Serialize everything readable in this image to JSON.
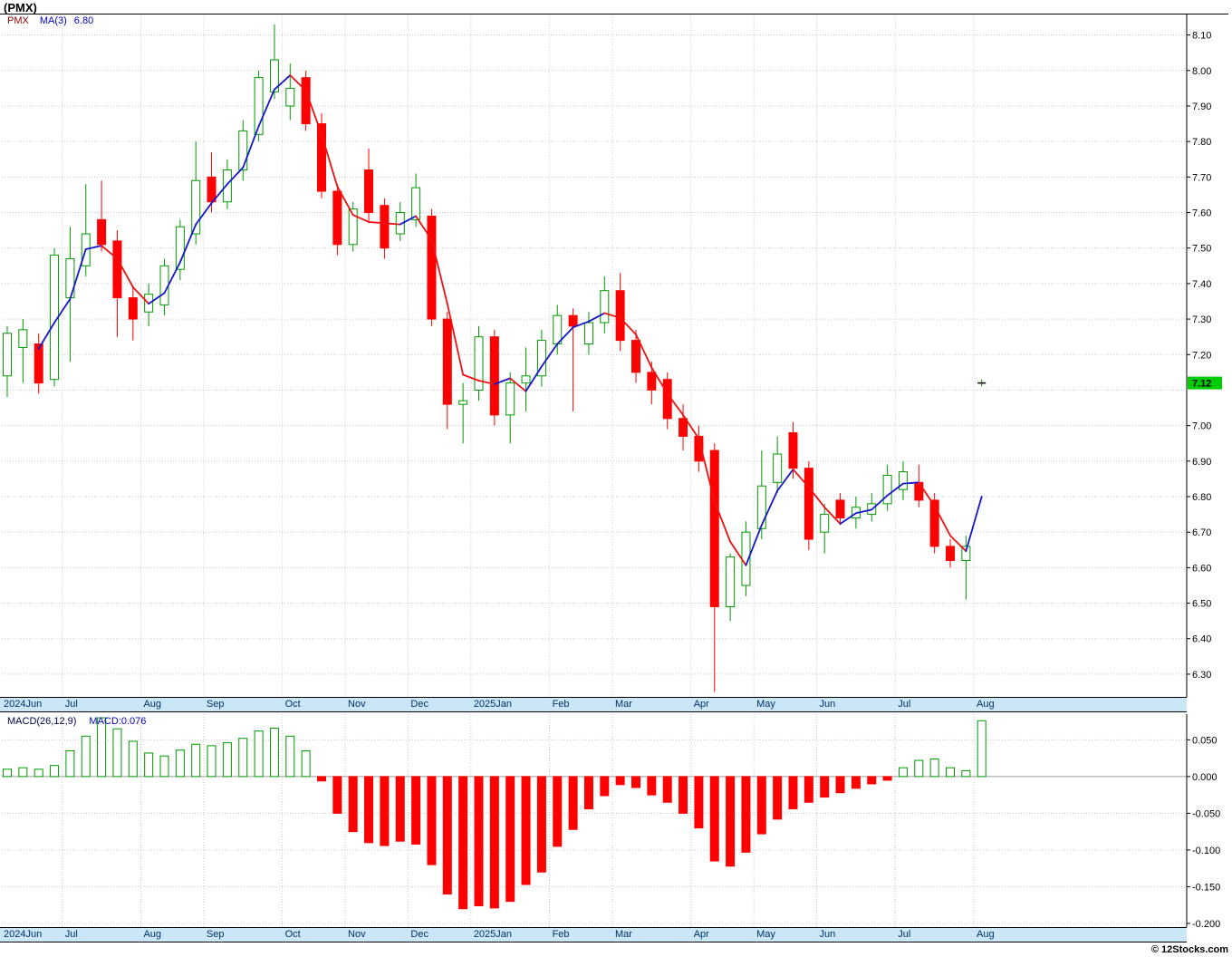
{
  "header": {
    "title": "(PMX)"
  },
  "legend": {
    "symbol": "PMX",
    "ma_label": "MA(3)",
    "ma_value": "6.80"
  },
  "macd_panel": {
    "label": "MACD(26,12,9)",
    "value_label": "MACD:0.076"
  },
  "footer": {
    "credit": "© 12Stocks.com"
  },
  "price_badge": "7.12",
  "colors": {
    "up_candle": "#009900",
    "down_candle": "#ff0000",
    "ma_rising": "#1515cc",
    "ma_falling": "#ee1111",
    "grid": "#c9c9c9",
    "axis": "#000000",
    "date_band_bg": "#cbe6f7",
    "date_band_text": "#003366",
    "price_badge_bg": "#00cc00",
    "legend_symbol": "#8b0000",
    "legend_ma": "#0000cd"
  },
  "chart_data": [
    {
      "type": "candlestick",
      "symbol": "PMX",
      "interval": "weekly",
      "ma_period": 3,
      "ma_last_value": 6.8,
      "last_price": 7.12,
      "ylim": [
        6.236,
        8.159
      ],
      "y_ticks": [
        8.1,
        8.0,
        7.9,
        7.8,
        7.7,
        7.6,
        7.5,
        7.4,
        7.3,
        7.2,
        7.0,
        6.9,
        6.8,
        6.7,
        6.6,
        6.5,
        6.4,
        6.3
      ],
      "y_grid": [
        8.1,
        8.0,
        7.9,
        7.8,
        7.7,
        7.6,
        7.5,
        7.4,
        7.3,
        7.2,
        7.1,
        7.0,
        6.9,
        6.8,
        6.7,
        6.6,
        6.5,
        6.4,
        6.3
      ],
      "x_axis_months": [
        {
          "label": "2024Jun",
          "bar": 0
        },
        {
          "label": "Jul",
          "bar": 4
        },
        {
          "label": "Aug",
          "bar": 9
        },
        {
          "label": "Sep",
          "bar": 13
        },
        {
          "label": "Oct",
          "bar": 18
        },
        {
          "label": "Nov",
          "bar": 22
        },
        {
          "label": "Dec",
          "bar": 26
        },
        {
          "label": "2025Jan",
          "bar": 30
        },
        {
          "label": "Feb",
          "bar": 35
        },
        {
          "label": "Mar",
          "bar": 39
        },
        {
          "label": "Apr",
          "bar": 44
        },
        {
          "label": "May",
          "bar": 48
        },
        {
          "label": "Jun",
          "bar": 52
        },
        {
          "label": "Jul",
          "bar": 57
        },
        {
          "label": "Aug",
          "bar": 62
        }
      ],
      "bars": [
        [
          7.14,
          7.28,
          7.08,
          7.26
        ],
        [
          7.22,
          7.3,
          7.12,
          7.27
        ],
        [
          7.23,
          7.26,
          7.09,
          7.12
        ],
        [
          7.13,
          7.5,
          7.11,
          7.48
        ],
        [
          7.36,
          7.56,
          7.18,
          7.47
        ],
        [
          7.45,
          7.68,
          7.42,
          7.54
        ],
        [
          7.58,
          7.69,
          7.49,
          7.51
        ],
        [
          7.52,
          7.55,
          7.25,
          7.36
        ],
        [
          7.36,
          7.39,
          7.24,
          7.3
        ],
        [
          7.32,
          7.4,
          7.28,
          7.37
        ],
        [
          7.34,
          7.47,
          7.31,
          7.45
        ],
        [
          7.44,
          7.58,
          7.41,
          7.56
        ],
        [
          7.54,
          7.8,
          7.51,
          7.69
        ],
        [
          7.7,
          7.77,
          7.6,
          7.63
        ],
        [
          7.63,
          7.75,
          7.61,
          7.72
        ],
        [
          7.72,
          7.86,
          7.69,
          7.83
        ],
        [
          7.82,
          8.0,
          7.8,
          7.98
        ],
        [
          7.94,
          8.13,
          7.92,
          8.03
        ],
        [
          7.9,
          8.02,
          7.86,
          7.95
        ],
        [
          7.98,
          8.0,
          7.83,
          7.85
        ],
        [
          7.85,
          7.88,
          7.64,
          7.66
        ],
        [
          7.66,
          7.68,
          7.48,
          7.51
        ],
        [
          7.51,
          7.63,
          7.49,
          7.61
        ],
        [
          7.72,
          7.78,
          7.57,
          7.6
        ],
        [
          7.62,
          7.64,
          7.47,
          7.5
        ],
        [
          7.54,
          7.63,
          7.52,
          7.6
        ],
        [
          7.58,
          7.71,
          7.56,
          7.67
        ],
        [
          7.59,
          7.61,
          7.28,
          7.3
        ],
        [
          7.3,
          7.32,
          6.99,
          7.06
        ],
        [
          7.06,
          7.12,
          6.95,
          7.07
        ],
        [
          7.1,
          7.28,
          7.07,
          7.25
        ],
        [
          7.25,
          7.27,
          7.0,
          7.03
        ],
        [
          7.03,
          7.15,
          6.95,
          7.12
        ],
        [
          7.12,
          7.22,
          7.04,
          7.14
        ],
        [
          7.14,
          7.27,
          7.11,
          7.24
        ],
        [
          7.23,
          7.34,
          7.2,
          7.31
        ],
        [
          7.31,
          7.33,
          7.04,
          7.28
        ],
        [
          7.23,
          7.32,
          7.2,
          7.29
        ],
        [
          7.29,
          7.42,
          7.26,
          7.38
        ],
        [
          7.38,
          7.43,
          7.21,
          7.24
        ],
        [
          7.24,
          7.27,
          7.12,
          7.15
        ],
        [
          7.15,
          7.18,
          7.06,
          7.1
        ],
        [
          7.13,
          7.15,
          6.99,
          7.02
        ],
        [
          7.02,
          7.06,
          6.93,
          6.97
        ],
        [
          6.97,
          7.0,
          6.87,
          6.9
        ],
        [
          6.93,
          6.95,
          6.25,
          6.49
        ],
        [
          6.49,
          6.64,
          6.45,
          6.63
        ],
        [
          6.55,
          6.73,
          6.52,
          6.7
        ],
        [
          6.71,
          6.93,
          6.68,
          6.83
        ],
        [
          6.84,
          6.97,
          6.81,
          6.92
        ],
        [
          6.98,
          7.01,
          6.85,
          6.88
        ],
        [
          6.88,
          6.9,
          6.65,
          6.68
        ],
        [
          6.7,
          6.78,
          6.64,
          6.75
        ],
        [
          6.79,
          6.81,
          6.72,
          6.74
        ],
        [
          6.74,
          6.8,
          6.71,
          6.77
        ],
        [
          6.75,
          6.81,
          6.73,
          6.78
        ],
        [
          6.78,
          6.89,
          6.76,
          6.86
        ],
        [
          6.82,
          6.9,
          6.79,
          6.87
        ],
        [
          6.84,
          6.89,
          6.77,
          6.79
        ],
        [
          6.79,
          6.81,
          6.64,
          6.66
        ],
        [
          6.66,
          6.68,
          6.6,
          6.62
        ],
        [
          6.62,
          6.69,
          6.51,
          6.66
        ],
        [
          7.12,
          7.13,
          7.11,
          7.12
        ]
      ]
    },
    {
      "type": "bar",
      "name": "MACD(26,12,9)",
      "last_value": 0.076,
      "ylim": [
        -0.205,
        0.085
      ],
      "y_ticks": [
        0.05,
        0.0,
        -0.05,
        -0.1,
        -0.15,
        -0.2
      ],
      "values": [
        0.01,
        0.012,
        0.01,
        0.015,
        0.035,
        0.055,
        0.08,
        0.065,
        0.048,
        0.032,
        0.028,
        0.036,
        0.044,
        0.042,
        0.046,
        0.052,
        0.062,
        0.066,
        0.055,
        0.035,
        -0.006,
        -0.05,
        -0.075,
        -0.09,
        -0.094,
        -0.088,
        -0.092,
        -0.12,
        -0.16,
        -0.18,
        -0.176,
        -0.179,
        -0.17,
        -0.147,
        -0.13,
        -0.095,
        -0.072,
        -0.044,
        -0.026,
        -0.011,
        -0.015,
        -0.025,
        -0.035,
        -0.05,
        -0.07,
        -0.115,
        -0.122,
        -0.103,
        -0.078,
        -0.058,
        -0.044,
        -0.035,
        -0.028,
        -0.022,
        -0.016,
        -0.01,
        -0.005,
        0.012,
        0.022,
        0.024,
        0.012,
        0.008,
        0.076
      ]
    }
  ]
}
